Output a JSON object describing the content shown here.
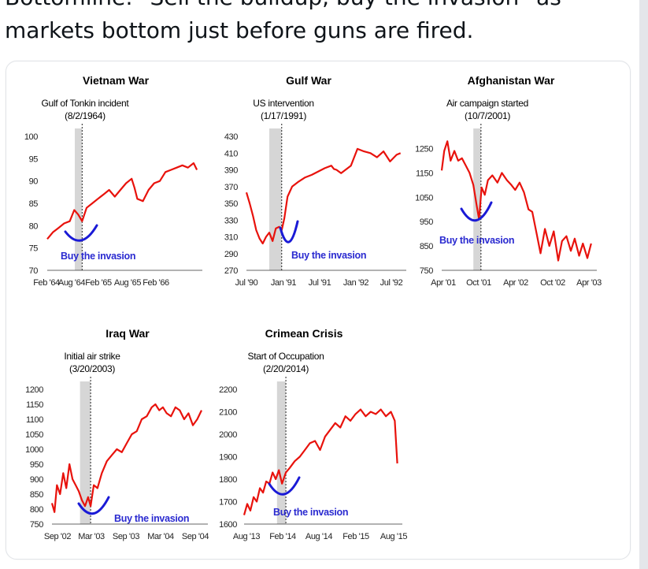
{
  "tweet": {
    "line1": "Bottomline: \"Sell the buildup, buy the invasion\" as",
    "line2": "markets bottom just before guns are fired."
  },
  "colors": {
    "series": "#e8120c",
    "shade": "#d6d6d6",
    "annotation": "#1a1ad6",
    "annotation_text": "#2a2ad0"
  },
  "chart_data": [
    {
      "type": "line",
      "title": "Vietnam War",
      "event_label": "Gulf of Tonkin incident",
      "event_date": "(8/2/1964)",
      "annotation": "Buy the invasion",
      "x_ticks": [
        "Feb '64",
        "Aug '64",
        "Feb '65",
        "Aug '65",
        "Feb '66"
      ],
      "y_ticks": [
        70,
        75,
        80,
        85,
        90,
        95,
        100
      ],
      "ylim": [
        70,
        100
      ],
      "xlim": [
        0,
        27
      ],
      "shade_range": [
        4.9,
        6.2
      ],
      "event_x": 6.2,
      "series": [
        {
          "x": [
            0,
            1,
            2,
            3,
            4,
            4.8,
            5.5,
            6.2,
            7,
            8,
            9,
            10,
            11,
            12,
            13,
            14,
            15,
            15.5,
            16,
            17,
            18,
            19,
            20,
            21,
            22,
            23,
            24,
            25,
            26,
            26.6
          ],
          "values": [
            77,
            78.5,
            79.5,
            80.5,
            81,
            83.5,
            82.5,
            81,
            84,
            85,
            86,
            87,
            88,
            86.5,
            88,
            89.5,
            90.5,
            88.5,
            86,
            85.5,
            88,
            89.5,
            90,
            92,
            92.5,
            93,
            93.5,
            93,
            94,
            92.5
          ]
        }
      ]
    },
    {
      "type": "line",
      "title": "Gulf War",
      "event_label": "US intervention",
      "event_date": "(1/17/1991)",
      "annotation": "Buy the invasion",
      "x_ticks": [
        "Jul '90",
        "Jan '91",
        "Jul '91",
        "Jan '92",
        "Jul '92"
      ],
      "y_ticks": [
        270,
        290,
        310,
        330,
        350,
        370,
        390,
        410,
        430
      ],
      "ylim": [
        270,
        430
      ],
      "xlim": [
        0,
        24
      ],
      "shade_range": [
        3.5,
        5.4
      ],
      "event_x": 5.4,
      "series": [
        {
          "x": [
            0,
            0.5,
            1,
            1.5,
            2,
            2.5,
            3,
            3.5,
            4,
            4.5,
            5,
            5.4,
            5.8,
            6.3,
            7,
            8,
            9,
            10,
            11,
            12,
            13,
            13.4,
            13.8,
            14.5,
            16,
            17,
            18,
            19,
            20,
            21,
            22,
            23,
            23.6
          ],
          "values": [
            363,
            350,
            335,
            318,
            308,
            302,
            310,
            315,
            305,
            320,
            322,
            318,
            332,
            358,
            370,
            376,
            381,
            384,
            388,
            392,
            395,
            391,
            390,
            386,
            395,
            415,
            412,
            410,
            405,
            412,
            400,
            408,
            410
          ]
        }
      ]
    },
    {
      "type": "line",
      "title": "Afghanistan War",
      "event_label": "Air campaign started",
      "event_date": "(10/7/2001)",
      "annotation": "Buy the invasion",
      "x_ticks": [
        "Apr '01",
        "Oct '01",
        "Apr '02",
        "Oct '02",
        "Apr '03"
      ],
      "y_ticks": [
        750,
        850,
        950,
        1050,
        1150,
        1250
      ],
      "ylim": [
        750,
        1300
      ],
      "xlim": [
        0,
        24
      ],
      "shade_range": [
        5,
        6.2
      ],
      "event_x": 6.2,
      "series": [
        {
          "x": [
            0,
            0.4,
            0.9,
            1.4,
            2,
            2.6,
            3.2,
            3.8,
            4.4,
            5,
            5.5,
            5.9,
            6.3,
            6.8,
            7.3,
            8,
            8.8,
            9.5,
            10.3,
            11,
            11.6,
            12.3,
            13,
            13.7,
            14.3,
            15,
            15.6,
            16.3,
            17,
            17.7,
            18.4,
            19,
            19.7,
            20.4,
            21,
            21.7,
            22.3,
            23,
            23.6
          ],
          "values": [
            1160,
            1240,
            1280,
            1200,
            1240,
            1200,
            1210,
            1180,
            1150,
            1100,
            1020,
            960,
            1090,
            1060,
            1120,
            1140,
            1110,
            1150,
            1120,
            1100,
            1080,
            1110,
            1070,
            1000,
            990,
            900,
            820,
            920,
            850,
            910,
            790,
            870,
            890,
            830,
            880,
            810,
            860,
            800,
            860
          ]
        }
      ]
    },
    {
      "type": "line",
      "title": "Iraq War",
      "event_label": "Initial air strike",
      "event_date": "(3/20/2003)",
      "annotation": "Buy the invasion",
      "x_ticks": [
        "Sep '02",
        "Mar '03",
        "Sep '03",
        "Mar '04",
        "Sep '04"
      ],
      "y_ticks": [
        750,
        800,
        850,
        900,
        950,
        1000,
        1050,
        1100,
        1150,
        1200
      ],
      "ylim": [
        750,
        1200
      ],
      "xlim": [
        0,
        24.5
      ],
      "shade_range": [
        4.5,
        6.2
      ],
      "event_x": 6.2,
      "series": [
        {
          "x": [
            0,
            0.4,
            0.8,
            1.3,
            1.8,
            2.3,
            2.8,
            3.3,
            3.8,
            4.3,
            4.8,
            5.3,
            5.8,
            6.2,
            6.7,
            7.3,
            8,
            8.8,
            9.6,
            10.4,
            11.2,
            12,
            12.8,
            13.6,
            14.4,
            15.2,
            16,
            16.6,
            17.2,
            17.8,
            18.4,
            19.1,
            19.8,
            20.5,
            21.2,
            21.9,
            22.6,
            23.3,
            24
          ],
          "values": [
            820,
            790,
            880,
            850,
            920,
            870,
            950,
            900,
            880,
            860,
            830,
            810,
            840,
            810,
            880,
            870,
            920,
            960,
            980,
            1000,
            990,
            1020,
            1050,
            1060,
            1100,
            1110,
            1140,
            1150,
            1130,
            1140,
            1120,
            1110,
            1140,
            1130,
            1100,
            1120,
            1080,
            1100,
            1130
          ]
        }
      ]
    },
    {
      "type": "line",
      "title": "Crimean Crisis",
      "event_label": "Start of Occupation",
      "event_date": "(2/20/2014)",
      "annotation": "Buy the invasion",
      "x_ticks": [
        "Aug '13",
        "Feb '14",
        "Aug '14",
        "Feb '15",
        "Aug '15"
      ],
      "y_ticks": [
        1600,
        1700,
        1800,
        1900,
        2000,
        2100,
        2200
      ],
      "ylim": [
        1600,
        2200
      ],
      "xlim": [
        0,
        24.5
      ],
      "shade_range": [
        5.2,
        6.6
      ],
      "event_x": 6.6,
      "series": [
        {
          "x": [
            0,
            0.5,
            1,
            1.5,
            2,
            2.5,
            3,
            3.5,
            4,
            4.5,
            5,
            5.5,
            6,
            6.6,
            7.2,
            8,
            8.8,
            9.6,
            10.4,
            11.2,
            12,
            12.8,
            13.6,
            14.4,
            15.2,
            16,
            16.8,
            17.6,
            18.4,
            19.2,
            20,
            20.8,
            21.6,
            22.4,
            23.2,
            23.8,
            24.2
          ],
          "values": [
            1640,
            1690,
            1660,
            1720,
            1700,
            1760,
            1740,
            1790,
            1780,
            1830,
            1800,
            1840,
            1780,
            1830,
            1850,
            1880,
            1900,
            1930,
            1960,
            1970,
            1930,
            1990,
            2020,
            2050,
            2030,
            2080,
            2060,
            2090,
            2110,
            2080,
            2100,
            2090,
            2110,
            2080,
            2100,
            2060,
            1870
          ]
        }
      ]
    }
  ]
}
